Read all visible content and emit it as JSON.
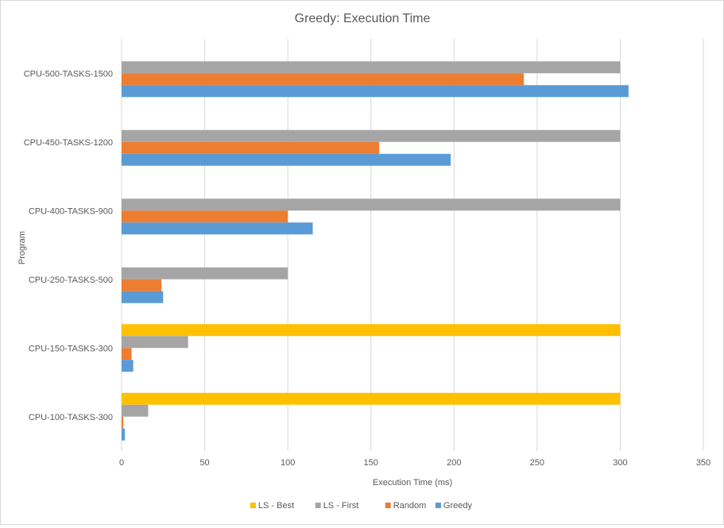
{
  "chart_data": {
    "type": "bar",
    "orientation": "horizontal",
    "title": "Greedy: Execution Time",
    "xlabel": "Execution Time (ms)",
    "ylabel": "Program",
    "xlim": [
      0,
      350
    ],
    "xticks": [
      0,
      50,
      100,
      150,
      200,
      250,
      300,
      350
    ],
    "grid": true,
    "legend_position": "bottom",
    "categories": [
      "CPU-100-TASKS-300",
      "CPU-150-TASKS-300",
      "CPU-250-TASKS-500",
      "CPU-400-TASKS-900",
      "CPU-450-TASKS-1200",
      "CPU-500-TASKS-1500"
    ],
    "series": [
      {
        "name": "LS - Best",
        "color": "#ffc000",
        "values": [
          300,
          300,
          null,
          null,
          null,
          null
        ]
      },
      {
        "name": "LS - First",
        "color": "#a5a5a5",
        "values": [
          16,
          40,
          100,
          300,
          300,
          300
        ]
      },
      {
        "name": "Random",
        "color": "#ed7d31",
        "values": [
          1,
          6,
          24,
          100,
          155,
          242
        ]
      },
      {
        "name": "Greedy",
        "color": "#5b9bd5",
        "values": [
          2,
          7,
          25,
          115,
          198,
          305
        ]
      }
    ]
  }
}
